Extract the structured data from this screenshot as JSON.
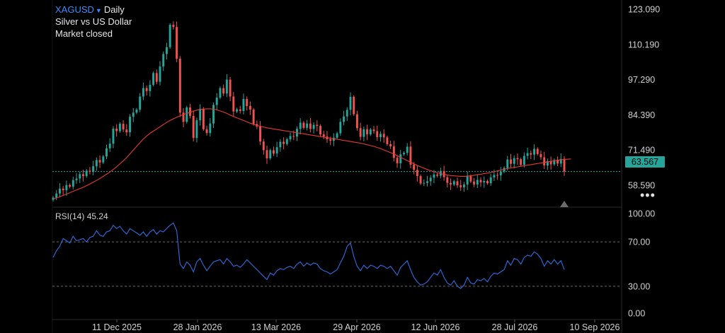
{
  "header": {
    "symbol": "XAGUSD",
    "timeframe": "Daily",
    "subtitle": "Silver vs US Dollar",
    "status": "Market closed"
  },
  "current_price": "63.567",
  "rsi": {
    "label": "RSI(14)",
    "value": "45.24"
  },
  "colors": {
    "up": "#26a69a",
    "down": "#ef5350",
    "ma": "#e53935",
    "rsi": "#2f6de1",
    "price_line": "#26a69a"
  },
  "chart_data": [
    {
      "type": "candlestick",
      "title": "",
      "price_axis_ticks": [
        123.09,
        110.19,
        97.29,
        84.39,
        71.49,
        58.59
      ],
      "ylim": [
        50.5,
        126
      ],
      "date_ticks": [
        "11 Dec 2025",
        "28 Jan 2026",
        "13 Mar 2026",
        "29 Apr 2026",
        "12 Jun 2026",
        "28 Jul 2026",
        "10 Sep 2026"
      ],
      "current_price": 63.567,
      "closes": [
        54.0,
        55.5,
        57.3,
        56.7,
        58.6,
        58.0,
        60.4,
        61.0,
        62.6,
        61.9,
        63.9,
        63.5,
        65.5,
        67.8,
        66.9,
        69.1,
        72.1,
        73.8,
        79.3,
        78.4,
        81.1,
        79.0,
        78.0,
        83.7,
        85.2,
        86.3,
        91.1,
        94.2,
        93.1,
        95.4,
        99.7,
        96.5,
        102.1,
        106.7,
        109.2,
        117.4,
        116.6,
        105.0,
        85.2,
        81.8,
        87.1,
        84.0,
        75.9,
        82.4,
        86.6,
        79.1,
        77.7,
        81.2,
        88.0,
        90.7,
        94.2,
        92.2,
        97.3,
        91.1,
        85.6,
        86.4,
        85.8,
        90.2,
        87.6,
        86.3,
        81.0,
        80.1,
        74.6,
        71.4,
        68.4,
        71.4,
        70.2,
        72.5,
        74.5,
        73.7,
        75.4,
        76.6,
        76.4,
        79.2,
        81.5,
        79.6,
        81.2,
        79.2,
        80.7,
        80.3,
        77.2,
        76.4,
        75.4,
        74.9,
        76.0,
        77.6,
        81.8,
        83.8,
        86.2,
        91.0,
        84.6,
        79.5,
        76.3,
        79.1,
        77.2,
        79.0,
        78.4,
        76.2,
        77.4,
        76.1,
        73.6,
        72.8,
        68.6,
        66.6,
        69.9,
        70.4,
        72.7,
        66.1,
        64.2,
        61.9,
        59.2,
        59.4,
        60.0,
        61.3,
        62.5,
        62.0,
        63.7,
        61.5,
        59.4,
        58.8,
        60.0,
        58.5,
        57.8,
        58.8,
        61.9,
        59.9,
        58.8,
        60.5,
        59.6,
        60.1,
        59.3,
        61.4,
        62.3,
        62.2,
        63.6,
        64.9,
        68.0,
        66.4,
        68.5,
        68.1,
        66.0,
        69.3,
        70.3,
        69.8,
        71.9,
        70.0,
        68.8,
        65.8,
        67.4,
        66.2,
        67.8,
        66.5,
        68.2,
        63.6
      ],
      "moving_average": [
        53.5,
        53.9,
        54.3,
        54.8,
        55.3,
        55.8,
        56.3,
        56.8,
        57.3,
        57.8,
        58.4,
        59.0,
        59.6,
        60.3,
        61.0,
        61.8,
        62.6,
        63.4,
        64.3,
        65.3,
        66.4,
        67.5,
        68.7,
        70.0,
        71.4,
        72.8,
        74.2,
        75.5,
        76.6,
        77.6,
        78.4,
        79.2,
        80.0,
        80.8,
        81.6,
        82.3,
        82.9,
        83.5,
        84.0,
        84.5,
        84.9,
        85.3,
        85.7,
        86.1,
        86.3,
        86.5,
        86.6,
        86.6,
        86.5,
        86.2,
        85.8,
        85.4,
        84.9,
        84.3,
        83.8,
        83.3,
        82.8,
        82.3,
        81.8,
        81.3,
        80.9,
        80.5,
        80.2,
        79.9,
        79.6,
        79.4,
        79.2,
        79.0,
        78.8,
        78.6,
        78.4,
        78.2,
        78.0,
        77.8,
        77.6,
        77.4,
        77.2,
        77.0,
        76.8,
        76.6,
        76.4,
        76.2,
        76.0,
        75.8,
        75.6,
        75.4,
        75.2,
        75.0,
        74.8,
        74.6,
        74.4,
        74.2,
        74.0,
        73.7,
        73.4,
        73.1,
        72.8,
        72.4,
        72.0,
        71.5,
        71.0,
        70.5,
        70.0,
        69.4,
        68.8,
        68.2,
        67.6,
        67.0,
        66.4,
        65.8,
        65.3,
        64.8,
        64.3,
        63.9,
        63.5,
        63.1,
        62.8,
        62.5,
        62.3,
        62.1,
        62.0,
        61.9,
        61.8,
        61.8,
        61.9,
        62.0,
        62.2,
        62.4,
        62.6,
        62.8,
        63.0,
        63.2,
        63.5,
        63.8,
        64.1,
        64.4,
        64.7,
        64.9,
        65.1,
        65.3,
        65.5,
        65.7,
        65.9,
        66.1,
        66.3,
        66.5,
        66.7,
        66.9,
        67.1,
        67.3,
        67.5,
        67.7,
        67.9,
        68.0,
        68.1,
        68.2
      ]
    },
    {
      "type": "line",
      "title": "RSI(14)",
      "ylim": [
        0,
        100
      ],
      "axis_ticks": [
        100.0,
        70.0,
        30.0,
        0.0
      ],
      "levels": [
        70,
        30
      ],
      "values": [
        56,
        62,
        66,
        73,
        71,
        69,
        75,
        71,
        72,
        73,
        70,
        74,
        75,
        80,
        76,
        75,
        79,
        80,
        85,
        82,
        84,
        80,
        77,
        82,
        80,
        78,
        76,
        79,
        75,
        79,
        81,
        77,
        80,
        79,
        82,
        85,
        87,
        80,
        50,
        46,
        52,
        49,
        43,
        52,
        55,
        49,
        44,
        48,
        52,
        53,
        54,
        50,
        55,
        52,
        48,
        49,
        47,
        50,
        54,
        51,
        48,
        45,
        42,
        39,
        36,
        42,
        40,
        44,
        46,
        45,
        47,
        48,
        46,
        50,
        52,
        48,
        51,
        49,
        51,
        50,
        46,
        44,
        43,
        41,
        43,
        45,
        51,
        57,
        66,
        69,
        57,
        48,
        44,
        49,
        46,
        49,
        48,
        46,
        49,
        48,
        46,
        48,
        44,
        40,
        47,
        50,
        53,
        45,
        38,
        34,
        31,
        32,
        34,
        38,
        42,
        40,
        45,
        38,
        33,
        31,
        35,
        30,
        28,
        31,
        38,
        33,
        32,
        36,
        35,
        37,
        34,
        39,
        42,
        41,
        43,
        45,
        53,
        49,
        55,
        54,
        50,
        56,
        58,
        57,
        61,
        59,
        55,
        48,
        53,
        50,
        54,
        50,
        53,
        45
      ]
    }
  ]
}
